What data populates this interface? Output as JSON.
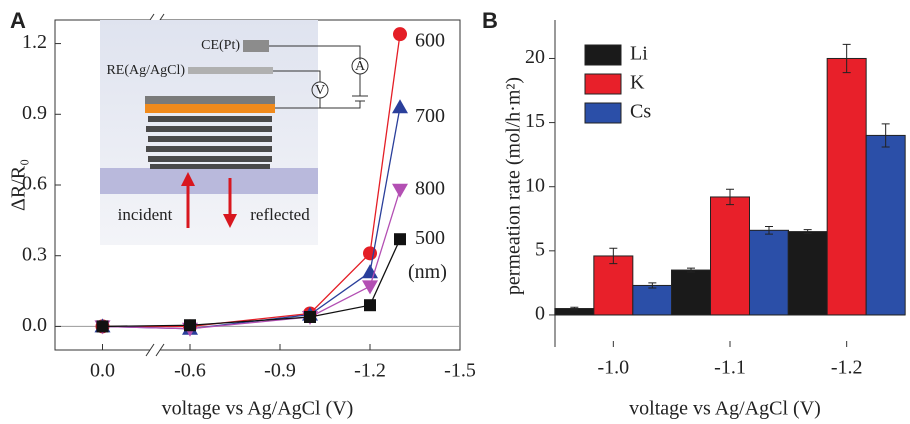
{
  "chart_data": [
    {
      "type": "line",
      "panel": "A",
      "x": [
        0.0,
        -0.6,
        -1.0,
        -1.2,
        -1.3
      ],
      "xlim": [
        0.2,
        -1.5
      ],
      "xbreak": [
        -0.2,
        -0.5
      ],
      "xticks": [
        {
          "value": 0.0,
          "label": "0.0"
        },
        -0.6,
        -0.9,
        -1.2,
        -1.5
      ],
      "ylim": [
        -0.1,
        1.3
      ],
      "yticks": [
        {
          "value": 0.0,
          "label": "0.0"
        },
        0.3,
        0.6,
        0.9,
        {
          "value": 1.2,
          "label": "1.2"
        }
      ],
      "xlabel": "voltage vs Ag/AgCl (V)",
      "ylabel": "ΔR/R₀",
      "unit_label": "(nm)",
      "inset_labels": [
        "CE(Pt)",
        "RE(Ag/AgCl)",
        "A",
        "V",
        "incident",
        "reflected"
      ],
      "series": [
        {
          "name": "600",
          "color": "#e41e26",
          "marker": "circle",
          "values": [
            0.0,
            0.0,
            0.055,
            0.31,
            1.24
          ]
        },
        {
          "name": "700",
          "color": "#2a3f9b",
          "marker": "triangle-up",
          "values": [
            0.0,
            -0.01,
            0.05,
            0.23,
            0.93
          ]
        },
        {
          "name": "800",
          "color": "#b34fb3",
          "marker": "triangle-down",
          "values": [
            0.0,
            -0.01,
            0.04,
            0.17,
            0.58
          ]
        },
        {
          "name": "500",
          "color": "#111111",
          "marker": "square",
          "values": [
            0.0,
            0.005,
            0.04,
            0.09,
            0.37
          ]
        }
      ]
    },
    {
      "type": "bar",
      "panel": "B",
      "categories": [
        "-1.0",
        "-1.1",
        "-1.2"
      ],
      "ylim": [
        -2.5,
        23
      ],
      "yticks": [
        0,
        5,
        10,
        15,
        20
      ],
      "xlabel": "voltage vs Ag/AgCl (V)",
      "ylabel": "permeation rate (mol/h·m²)",
      "series": [
        {
          "name": "Li",
          "color": "#1a1a1a",
          "values": [
            0.5,
            3.5,
            6.5
          ],
          "errors": [
            0.1,
            0.15,
            0.15
          ]
        },
        {
          "name": "K",
          "color": "#e8202a",
          "values": [
            4.6,
            9.2,
            20.0
          ],
          "errors": [
            0.6,
            0.6,
            1.1
          ]
        },
        {
          "name": "Cs",
          "color": "#2b4fa8",
          "values": [
            2.3,
            6.6,
            14.0
          ],
          "errors": [
            0.2,
            0.3,
            0.9
          ]
        }
      ]
    }
  ]
}
